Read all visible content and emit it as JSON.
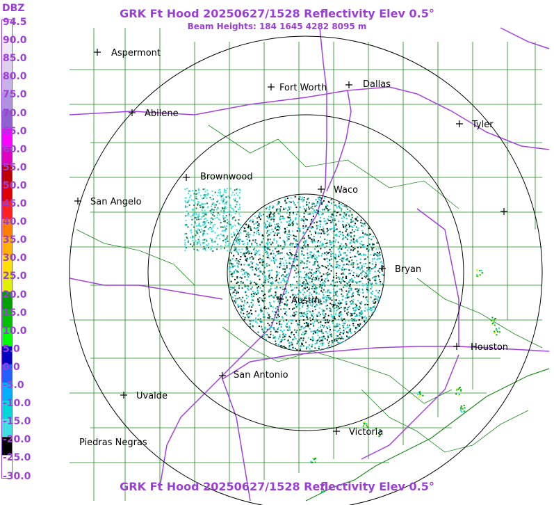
{
  "title": "GRK Ft Hood 20250627/1528 Reflectivity Elev 0.5°",
  "beam_heights": "Beam Heights: 184 1645 4282 8095 m",
  "legend": {
    "unit": "DBZ",
    "labels": [
      "94.5",
      "90.0",
      "85.0",
      "80.0",
      "75.0",
      "70.0",
      "65.0",
      "60.0",
      "55.0",
      "50.0",
      "45.0",
      "40.0",
      "35.0",
      "30.0",
      "25.0",
      "20.0",
      "15.0",
      "10.0",
      "5.0",
      "0.0",
      "-5.0",
      "-10.0",
      "-15.0",
      "-20.0",
      "-25.0",
      "-30.0"
    ],
    "colors": [
      "#ffffff",
      "#f0e8f8",
      "#e0d0f0",
      "#c8b0e8",
      "#b090e0",
      "#9060d0",
      "#ff00ff",
      "#e000c0",
      "#c00000",
      "#e00000",
      "#ff2020",
      "#ff8000",
      "#ffb000",
      "#ffe000",
      "#e0f000",
      "#00a000",
      "#00c000",
      "#00ff00",
      "#0000c0",
      "#2060ff",
      "#00b0ff",
      "#00d8d8",
      "#40e0e0",
      "#000000",
      "#ffffff",
      "#ffffff"
    ]
  },
  "cities": [
    {
      "name": "Aspermont"
    },
    {
      "name": "Fort Worth"
    },
    {
      "name": "Dallas"
    },
    {
      "name": "Abilene"
    },
    {
      "name": "Tyler"
    },
    {
      "name": "Brownwood"
    },
    {
      "name": "Waco"
    },
    {
      "name": "San Angelo"
    },
    {
      "name": "Bryan"
    },
    {
      "name": "Austin"
    },
    {
      "name": "Houston"
    },
    {
      "name": "San Antonio"
    },
    {
      "name": "Uvalde"
    },
    {
      "name": "Victoria"
    },
    {
      "name": "Piedras Negras"
    }
  ],
  "colors": {
    "title": "#9a3fd6",
    "county_lines": "#1a8a1a",
    "highways": "#a040e0",
    "range_rings": "#000000"
  }
}
